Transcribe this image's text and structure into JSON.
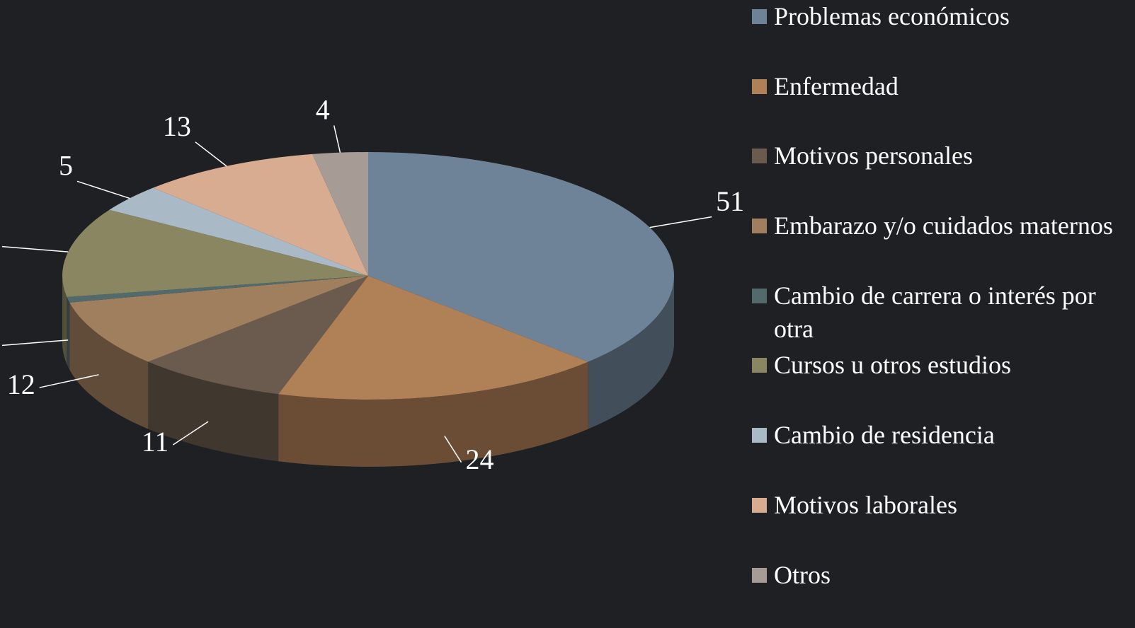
{
  "chart_data": {
    "type": "pie",
    "categories": [
      "Problemas económicos",
      "Enfermedad",
      "Motivos personales",
      "Embarazo y/o cuidados maternos",
      "Cambio de carrera o interés por otra",
      "Cursos u otros estudios",
      "Cambio de residencia",
      "Motivos laborales",
      "Otros"
    ],
    "values": [
      51,
      24,
      11,
      12,
      1,
      16,
      5,
      13,
      4
    ],
    "colors": [
      "#6e8397",
      "#b08056",
      "#6b5b4f",
      "#a07f5f",
      "#536a6c",
      "#8a8661",
      "#a9b9c6",
      "#d8ac91",
      "#a69b95"
    ],
    "legend": "right"
  }
}
